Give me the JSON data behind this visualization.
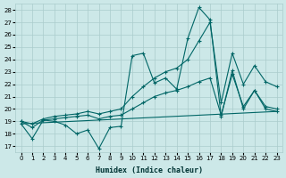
{
  "xlabel": "Humidex (Indice chaleur)",
  "background_color": "#cce8e8",
  "grid_color": "#aacccc",
  "line_color": "#006666",
  "xlim": [
    -0.5,
    23.5
  ],
  "ylim": [
    16.5,
    28.5
  ],
  "xticks": [
    0,
    1,
    2,
    3,
    4,
    5,
    6,
    7,
    8,
    9,
    10,
    11,
    12,
    13,
    14,
    15,
    16,
    17,
    18,
    19,
    20,
    21,
    22,
    23
  ],
  "yticks": [
    17,
    18,
    19,
    20,
    21,
    22,
    23,
    24,
    25,
    26,
    27,
    28
  ],
  "line1_x": [
    0,
    1,
    2,
    3,
    4,
    5,
    6,
    7,
    8,
    9,
    10,
    11,
    12,
    13,
    14,
    15,
    16,
    17,
    18,
    19,
    20,
    21,
    22,
    23
  ],
  "line1_y": [
    18.8,
    17.6,
    19.1,
    19.0,
    18.7,
    18.0,
    18.3,
    16.8,
    18.5,
    18.6,
    24.3,
    24.5,
    22.1,
    22.5,
    21.6,
    25.7,
    28.2,
    27.2,
    19.4,
    23.1,
    20.0,
    21.5,
    20.0,
    19.8
  ],
  "line2_x": [
    0,
    1,
    2,
    3,
    4,
    5,
    6,
    7,
    8,
    9,
    10,
    11,
    12,
    13,
    14,
    15,
    16,
    17,
    18,
    19,
    20,
    21,
    22,
    23
  ],
  "line2_y": [
    19.0,
    18.5,
    19.1,
    19.2,
    19.3,
    19.4,
    19.5,
    19.2,
    19.4,
    19.5,
    20.0,
    20.5,
    21.0,
    21.3,
    21.5,
    21.8,
    22.2,
    22.5,
    19.5,
    22.8,
    20.2,
    21.5,
    20.2,
    20.0
  ],
  "line3_x": [
    0,
    1,
    2,
    3,
    4,
    5,
    6,
    7,
    8,
    9,
    10,
    11,
    12,
    13,
    14,
    15,
    16,
    17,
    18,
    19,
    20,
    21,
    22,
    23
  ],
  "line3_y": [
    19.0,
    18.8,
    19.2,
    19.4,
    19.5,
    19.6,
    19.8,
    19.6,
    19.8,
    20.0,
    21.0,
    21.8,
    22.5,
    23.0,
    23.3,
    24.0,
    25.5,
    27.0,
    20.5,
    24.5,
    22.0,
    23.5,
    22.2,
    21.8
  ],
  "line4_x": [
    0,
    23
  ],
  "line4_y": [
    18.8,
    19.8
  ]
}
